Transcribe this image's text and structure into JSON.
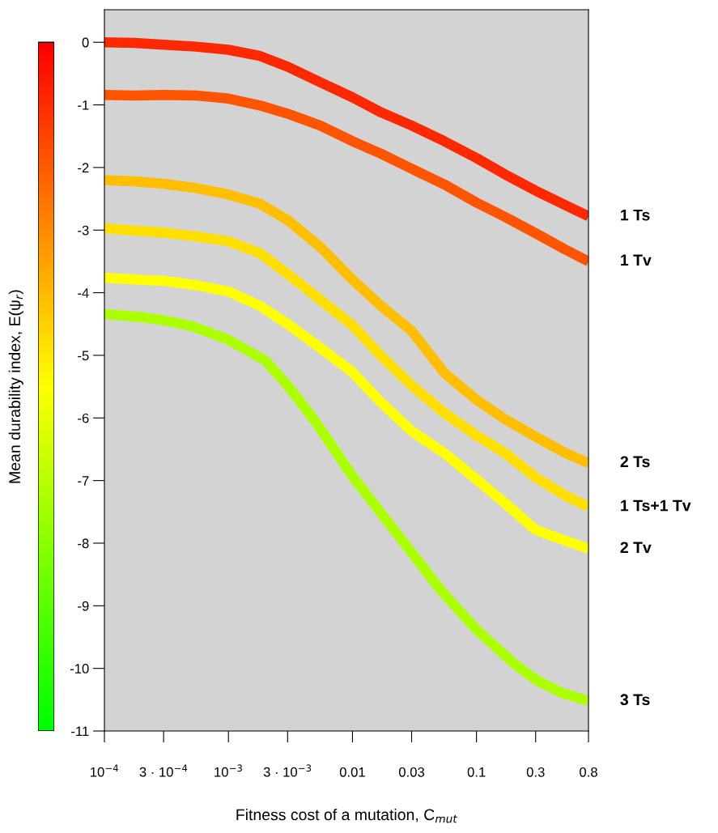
{
  "chart_data": {
    "type": "line",
    "xlabel": "Fitness cost of a mutation, C$_{mut}$",
    "clabel": "Mean durability index, E(ψ$_{r}$)",
    "log": "x",
    "xlim": [
      0.0001,
      0.8
    ],
    "xticks": [
      {
        "value": 0.0001,
        "label": "10$^{−4}$"
      },
      {
        "value": 0.0003,
        "label": "3 · 10$^{−4}$"
      },
      {
        "value": 0.001,
        "label": "10$^{−3}$"
      },
      {
        "value": 0.003,
        "label": "3 · 10$^{−3}$"
      },
      0.01,
      0.03,
      0.1,
      0.3,
      0.8
    ],
    "ylim": [
      -11,
      0.52
    ],
    "yticks": [
      0,
      -1,
      -2,
      -3,
      -4,
      -5,
      -6,
      -7,
      -8,
      -9,
      -10,
      -11
    ],
    "grid": false,
    "x": [
      0.0001,
      0.000175,
      0.0003,
      0.00055,
      0.001,
      0.0018,
      0.003,
      0.0055,
      0.01,
      0.017,
      0.03,
      0.055,
      0.1,
      0.17,
      0.3,
      0.52,
      0.8
    ],
    "series": [
      {
        "name": "1 Ts",
        "color": "#ff2900",
        "values": [
          0,
          -0.01,
          -0.04,
          -0.07,
          -0.12,
          -0.22,
          -0.39,
          -0.64,
          -0.88,
          -1.12,
          -1.33,
          -1.58,
          -1.85,
          -2.11,
          -2.37,
          -2.6,
          -2.78
        ]
      },
      {
        "name": "1 Tv",
        "color": "#ff5500",
        "values": [
          -0.84,
          -0.85,
          -0.84,
          -0.85,
          -0.9,
          -1.01,
          -1.14,
          -1.33,
          -1.58,
          -1.78,
          -2.02,
          -2.27,
          -2.56,
          -2.79,
          -3.05,
          -3.31,
          -3.5
        ]
      },
      {
        "name": "2 Ts",
        "color": "#ffbf00",
        "values": [
          -2.2,
          -2.22,
          -2.26,
          -2.33,
          -2.43,
          -2.58,
          -2.84,
          -3.27,
          -3.79,
          -4.21,
          -4.61,
          -5.28,
          -5.71,
          -6.02,
          -6.3,
          -6.56,
          -6.72
        ]
      },
      {
        "name": "1 Ts+1 Tv",
        "color": "#ffdf00",
        "values": [
          -2.97,
          -3.01,
          -3.04,
          -3.1,
          -3.18,
          -3.37,
          -3.7,
          -4.11,
          -4.52,
          -5.01,
          -5.48,
          -5.92,
          -6.28,
          -6.56,
          -6.95,
          -7.24,
          -7.42
        ]
      },
      {
        "name": "2 Tv",
        "color": "#ffff00",
        "values": [
          -3.76,
          -3.79,
          -3.81,
          -3.88,
          -3.98,
          -4.21,
          -4.5,
          -4.88,
          -5.27,
          -5.75,
          -6.21,
          -6.56,
          -6.98,
          -7.36,
          -7.79,
          -7.96,
          -8.09
        ]
      },
      {
        "name": "3 Ts",
        "color": "#abff00",
        "x": [
          0.0001,
          0.0002,
          0.0003,
          0.0005,
          0.001,
          0.002,
          0.003,
          0.005,
          0.01,
          0.02,
          0.03,
          0.05,
          0.1,
          0.2,
          0.3,
          0.5,
          0.8
        ],
        "values": [
          -4.34,
          -4.39,
          -4.44,
          -4.53,
          -4.75,
          -5.09,
          -5.48,
          -6.05,
          -6.93,
          -7.7,
          -8.15,
          -8.72,
          -9.38,
          -9.92,
          -10.18,
          -10.4,
          -10.52
        ]
      }
    ]
  }
}
